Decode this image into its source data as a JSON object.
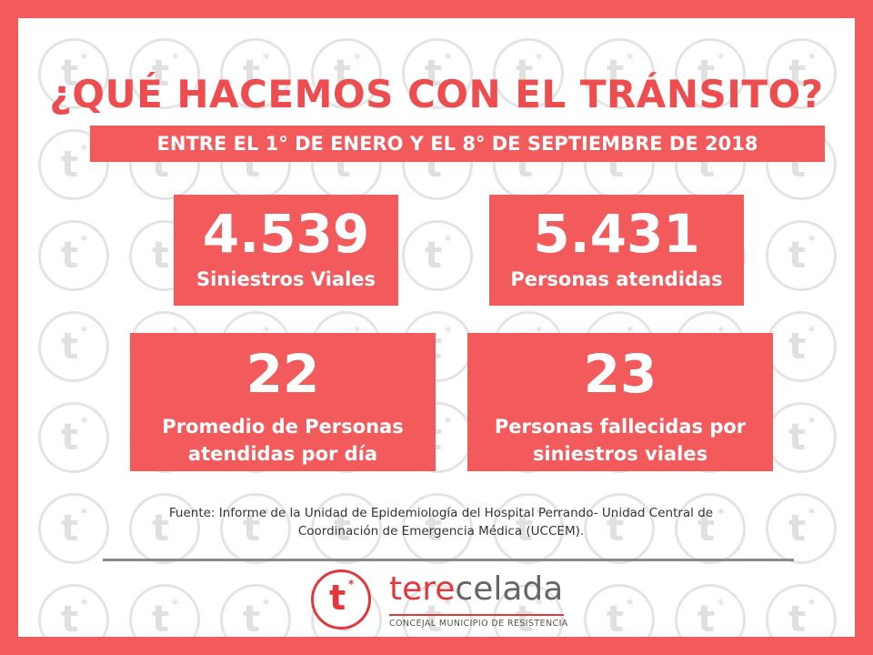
{
  "title": "¿QUÉ HACEMOS CON EL TRÁNSITO?",
  "subtitle": "ENTRE EL 1° DE ENERO Y EL 8° DE SEPTIEMBRE DE 2018",
  "stats": [
    {
      "value": "4.539",
      "label_line1": "Siniestros Viales",
      "label_line2": ""
    },
    {
      "value": "5.431",
      "label_line1": "Personas atendidas",
      "label_line2": ""
    },
    {
      "value": "22",
      "label_line1": "Promedio de Personas",
      "label_line2": "atendidas por día"
    },
    {
      "value": "23",
      "label_line1": "Personas fallecidas por",
      "label_line2": "siniestros viales"
    }
  ],
  "source": {
    "line1": "Fuente: Informe de la Unidad de Epidemiología del Hospital Perrando- Unidad Central de",
    "line2": "Coordinación de Emergencia Médica (UCCEM)."
  },
  "logo": {
    "mark_letter": "t",
    "mark_star": "*",
    "brand_part1": "tere",
    "brand_part2": "celada",
    "brand_sub": "CONCEJAL MUNICIPIO DE RESISTENCIA",
    "icon": "terecelada-logo-icon"
  },
  "colors": {
    "accent": "#f25a5c",
    "title": "#ee4d50",
    "brand_red": "#e3383b",
    "watermark": "#e0e0e0"
  }
}
